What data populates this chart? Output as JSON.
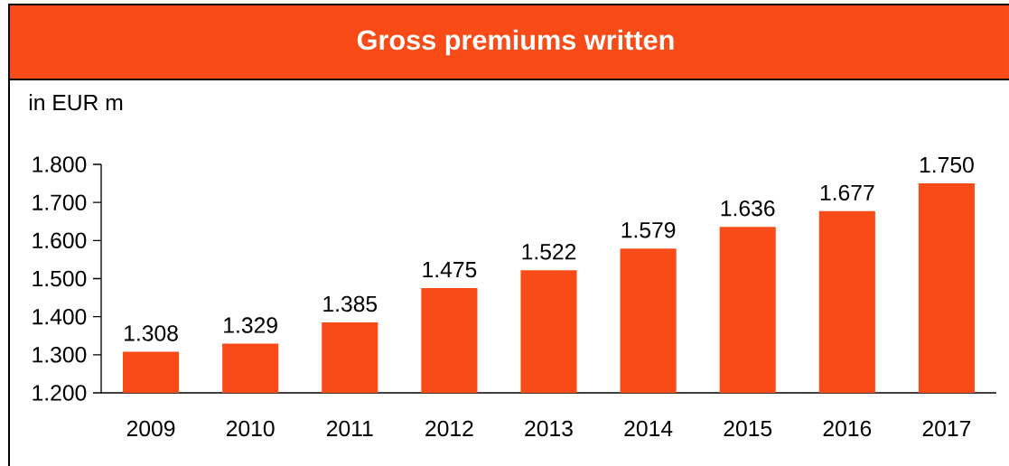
{
  "chart_data": {
    "type": "bar",
    "title": "Gross premiums written",
    "subtitle": "in EUR m",
    "categories": [
      "2009",
      "2010",
      "2011",
      "2012",
      "2013",
      "2014",
      "2015",
      "2016",
      "2017"
    ],
    "values": [
      1308,
      1329,
      1385,
      1475,
      1522,
      1579,
      1636,
      1677,
      1750
    ],
    "value_labels": [
      "1.308",
      "1.329",
      "1.385",
      "1.475",
      "1.522",
      "1.579",
      "1.636",
      "1.677",
      "1.750"
    ],
    "color": "#f84b17",
    "ylim": [
      1200,
      1800
    ],
    "yticks": [
      {
        "value": 1200,
        "label": "1.200"
      },
      {
        "value": 1300,
        "label": "1.300"
      },
      {
        "value": 1400,
        "label": "1.400"
      },
      {
        "value": 1500,
        "label": "1.500"
      },
      {
        "value": 1600,
        "label": "1.600"
      },
      {
        "value": 1700,
        "label": "1.700"
      },
      {
        "value": 1800,
        "label": "1.800"
      }
    ]
  }
}
